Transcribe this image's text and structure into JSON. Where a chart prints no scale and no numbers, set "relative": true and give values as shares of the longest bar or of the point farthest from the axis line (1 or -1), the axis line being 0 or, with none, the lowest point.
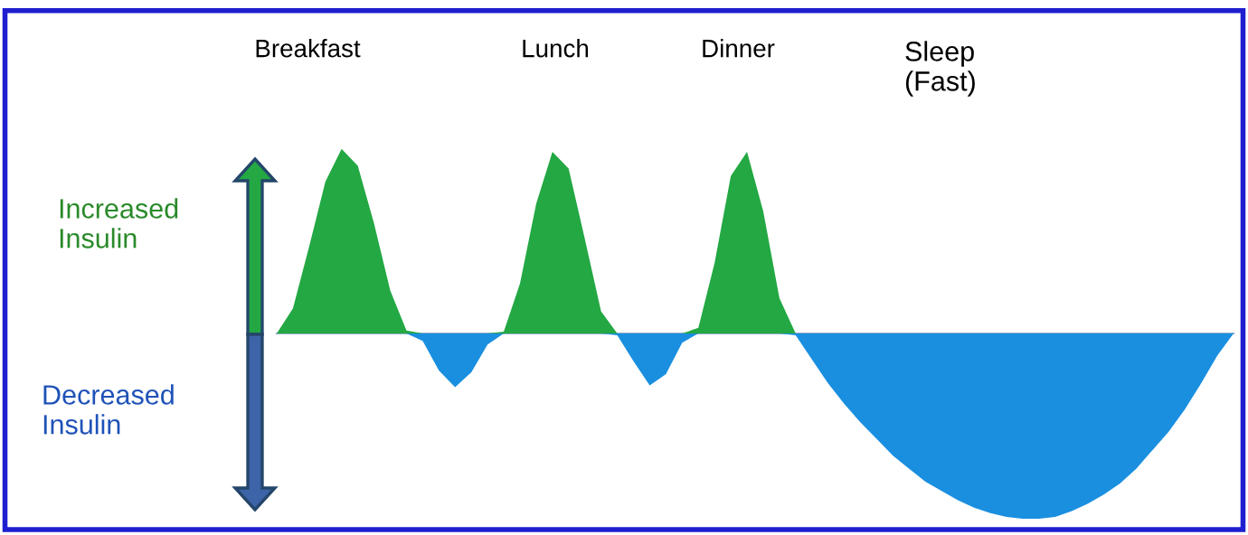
{
  "chart_data": {
    "type": "area",
    "relative": true,
    "categories": [
      null,
      null,
      null,
      null,
      null,
      null,
      null,
      null,
      null,
      null,
      null,
      null,
      null,
      null,
      null,
      null,
      null,
      null,
      null,
      null,
      null,
      null,
      null,
      null,
      null,
      null,
      null,
      null,
      null,
      null,
      null,
      null,
      null,
      null,
      null,
      null,
      null,
      null,
      null,
      null,
      null,
      null,
      null,
      null,
      null,
      null,
      null,
      null,
      null,
      null,
      null,
      null,
      null,
      null,
      null,
      null,
      null,
      null,
      null,
      null
    ],
    "series": [
      {
        "color": "#23a843",
        "values": [
          0,
          0.135,
          0.469,
          0.819,
          0.996,
          0.905,
          0.594,
          0.232,
          0.016,
          0,
          0,
          0,
          0,
          0,
          0.01,
          0.27,
          0.7,
          0.98,
          0.89,
          0.51,
          0.12,
          0,
          0,
          0,
          0,
          0,
          0.03,
          0.38,
          0.85,
          0.98,
          0.66,
          0.19,
          0,
          0,
          0,
          0,
          0,
          0,
          0,
          0,
          0,
          0,
          0,
          0,
          0,
          0,
          0,
          0,
          0,
          0,
          0,
          0,
          0,
          0,
          0,
          0,
          0,
          0,
          0,
          0
        ]
      },
      {
        "color": "#1a8fe0",
        "values": [
          0,
          0,
          0,
          0,
          0,
          0,
          0,
          0,
          0,
          -0.04,
          -0.2,
          -0.29,
          -0.21,
          -0.06,
          0,
          0,
          0,
          0,
          0,
          0,
          0,
          -0.01,
          -0.15,
          -0.28,
          -0.22,
          -0.05,
          0,
          0,
          0,
          0,
          0,
          0,
          -0.01,
          -0.14,
          -0.27,
          -0.38,
          -0.48,
          -0.57,
          -0.66,
          -0.73,
          -0.8,
          -0.85,
          -0.9,
          -0.94,
          -0.97,
          -0.99,
          -1,
          -1,
          -0.99,
          -0.96,
          -0.92,
          -0.87,
          -0.81,
          -0.73,
          -0.63,
          -0.53,
          -0.41,
          -0.27,
          -0.12,
          0
        ]
      }
    ],
    "annotations": [
      "Breakfast",
      "Lunch",
      "Dinner",
      "Sleep\n(Fast)",
      "Increased\nInsulin",
      "Decreased\nInsulin"
    ]
  }
}
